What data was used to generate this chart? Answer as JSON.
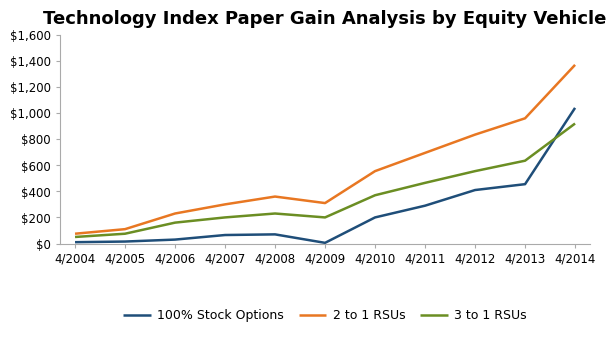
{
  "title": "Technology Index Paper Gain Analysis by Equity Vehicle",
  "x_labels": [
    "4/2004",
    "4/2005",
    "4/2006",
    "4/2007",
    "4/2008",
    "4/2009",
    "4/2010",
    "4/2011",
    "4/2012",
    "4/2013",
    "4/2014"
  ],
  "series": [
    {
      "name": "100% Stock Options",
      "color": "#1F4E79",
      "values": [
        10,
        15,
        30,
        65,
        70,
        5,
        200,
        290,
        410,
        455,
        1040
      ]
    },
    {
      "name": "2 to 1 RSUs",
      "color": "#E87722",
      "values": [
        75,
        110,
        230,
        300,
        360,
        310,
        555,
        695,
        835,
        960,
        1370
      ]
    },
    {
      "name": "3 to 1 RSUs",
      "color": "#6B8E23",
      "values": [
        50,
        75,
        160,
        200,
        230,
        200,
        370,
        465,
        555,
        635,
        920
      ]
    }
  ],
  "ylim": [
    0,
    1600
  ],
  "yticks": [
    0,
    200,
    400,
    600,
    800,
    1000,
    1200,
    1400,
    1600
  ],
  "ytick_labels": [
    "$0",
    "$200",
    "$400",
    "$600",
    "$800",
    "$1,000",
    "$1,200",
    "$1,400",
    "$1,600"
  ],
  "background_color": "#FFFFFF",
  "title_fontsize": 13,
  "tick_fontsize": 8.5,
  "legend_fontsize": 9,
  "linewidth": 1.8,
  "spine_color": "#AAAAAA"
}
